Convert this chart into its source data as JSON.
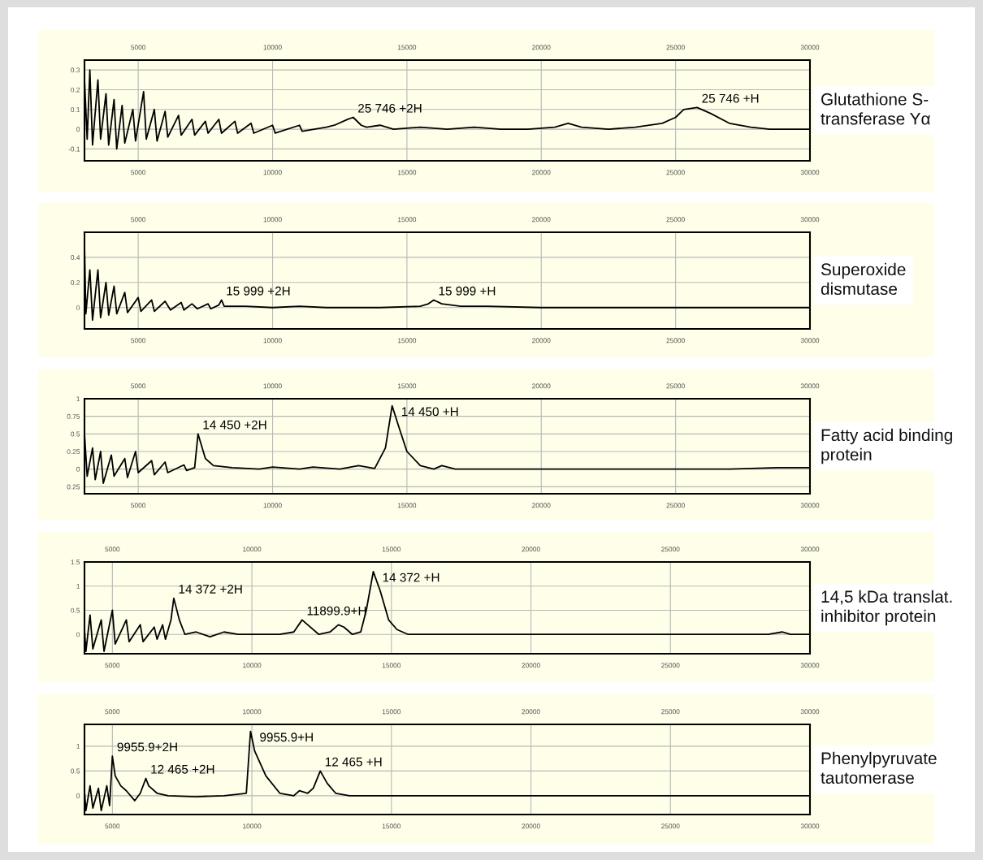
{
  "chart_data": [
    {
      "type": "line",
      "title": "Glutathione S-transferase Yα",
      "xlim": [
        3000,
        30000
      ],
      "xticks": [
        5000,
        10000,
        15000,
        20000,
        25000,
        30000
      ],
      "x2lim": [
        3000,
        30000
      ],
      "x2ticks": [
        5000,
        10000,
        15000,
        20000,
        25000,
        30000
      ],
      "ylim": [
        -0.16,
        0.35
      ],
      "yticks": [
        -0.1,
        0,
        0.1,
        0.2,
        0.3
      ],
      "grid": true,
      "series": [
        {
          "color": "#000000",
          "x": [
            3000,
            3100,
            3200,
            3300,
            3500,
            3600,
            3800,
            3900,
            4100,
            4200,
            4400,
            4500,
            4800,
            4900,
            5200,
            5300,
            5600,
            5700,
            6000,
            6100,
            6500,
            6600,
            7000,
            7100,
            7500,
            7600,
            8000,
            8100,
            8600,
            8700,
            9200,
            9300,
            10000,
            10100,
            11000,
            11100,
            12000,
            12300,
            12800,
            13000,
            13300,
            13500,
            14000,
            14500,
            15500,
            16500,
            17500,
            18500,
            19500,
            20500,
            21000,
            21500,
            22500,
            23500,
            24500,
            25000,
            25300,
            25800,
            26300,
            27000,
            27800,
            28500,
            29000,
            30000
          ],
          "values": [
            0.25,
            -0.05,
            0.3,
            -0.08,
            0.25,
            -0.05,
            0.18,
            -0.08,
            0.15,
            -0.1,
            0.12,
            -0.07,
            0.1,
            -0.06,
            0.19,
            -0.05,
            0.1,
            -0.06,
            0.09,
            -0.04,
            0.07,
            -0.03,
            0.05,
            -0.03,
            0.04,
            -0.02,
            0.05,
            -0.02,
            0.04,
            -0.02,
            0.03,
            -0.02,
            0.02,
            -0.02,
            0.02,
            -0.01,
            0.01,
            0.02,
            0.05,
            0.06,
            0.02,
            0.01,
            0.02,
            0.0,
            0.01,
            0.0,
            0.01,
            0.0,
            0.0,
            0.01,
            0.03,
            0.01,
            0.0,
            0.01,
            0.03,
            0.06,
            0.1,
            0.11,
            0.08,
            0.03,
            0.01,
            0.0,
            0.0,
            0.0
          ]
        }
      ],
      "annotations": [
        {
          "text": "25 746 +2H",
          "x": 13000,
          "y": 0.06
        },
        {
          "text": "25 746 +H",
          "x": 25800,
          "y": 0.11
        }
      ]
    },
    {
      "type": "line",
      "title": "Superoxide dismutase",
      "xlim": [
        3000,
        30000
      ],
      "xticks": [
        5000,
        10000,
        15000,
        20000,
        25000,
        30000
      ],
      "x2lim": [
        3000,
        30000
      ],
      "x2ticks": [
        5000,
        10000,
        15000,
        20000,
        25000,
        30000
      ],
      "ylim": [
        -0.17,
        0.6
      ],
      "yticks": [
        0,
        0.2,
        0.4
      ],
      "grid": true,
      "series": [
        {
          "color": "#000000",
          "x": [
            3000,
            3050,
            3200,
            3300,
            3500,
            3600,
            3800,
            3900,
            4100,
            4200,
            4500,
            4600,
            5000,
            5100,
            5500,
            5600,
            6000,
            6200,
            6600,
            6700,
            7000,
            7200,
            7600,
            7700,
            8000,
            8100,
            8200,
            9000,
            10000,
            11000,
            12000,
            13000,
            14000,
            15500,
            15800,
            16000,
            16300,
            17000,
            18000,
            20000,
            25000,
            30000
          ],
          "values": [
            0.5,
            -0.05,
            0.3,
            -0.1,
            0.3,
            -0.08,
            0.2,
            -0.06,
            0.17,
            -0.05,
            0.12,
            -0.04,
            0.08,
            -0.03,
            0.06,
            -0.03,
            0.05,
            -0.02,
            0.04,
            -0.02,
            0.03,
            -0.01,
            0.03,
            -0.01,
            0.02,
            0.06,
            0.01,
            0.01,
            0.0,
            0.01,
            0.0,
            0.0,
            0.0,
            0.01,
            0.03,
            0.06,
            0.03,
            0.01,
            0.01,
            0.0,
            0.0,
            0.0
          ]
        }
      ],
      "annotations": [
        {
          "text": "15 999 +2H",
          "x": 8100,
          "y": 0.06
        },
        {
          "text": "15 999 +H",
          "x": 16000,
          "y": 0.06
        }
      ]
    },
    {
      "type": "line",
      "title": "Fatty acid binding protein",
      "xlim": [
        3000,
        30000
      ],
      "xticks": [
        5000,
        10000,
        15000,
        20000,
        25000,
        30000
      ],
      "x2lim": [
        3000,
        30000
      ],
      "x2ticks": [
        5000,
        10000,
        15000,
        20000,
        25000,
        30000
      ],
      "ylim": [
        -0.35,
        1.0
      ],
      "yticks": [
        {
          "value": -0.25,
          "label": "0.25"
        },
        0,
        0.25,
        0.5,
        0.75,
        1
      ],
      "grid": true,
      "series": [
        {
          "color": "#000000",
          "x": [
            3000,
            3100,
            3300,
            3400,
            3600,
            3700,
            4000,
            4100,
            4500,
            4600,
            4900,
            5000,
            5500,
            5600,
            6000,
            6100,
            6700,
            6800,
            7100,
            7225,
            7500,
            7800,
            8500,
            9500,
            10000,
            11000,
            11500,
            12500,
            13200,
            13800,
            14200,
            14450,
            14700,
            15000,
            15500,
            16000,
            16300,
            16800,
            18000,
            22000,
            27000,
            28800,
            30000
          ],
          "values": [
            0.5,
            -0.1,
            0.3,
            -0.15,
            0.25,
            -0.2,
            0.2,
            -0.1,
            0.15,
            -0.12,
            0.25,
            -0.05,
            0.12,
            -0.08,
            0.1,
            -0.05,
            0.06,
            -0.02,
            0.02,
            0.5,
            0.15,
            0.05,
            0.02,
            0.0,
            0.03,
            0.0,
            0.03,
            0.0,
            0.05,
            0.01,
            0.3,
            0.9,
            0.6,
            0.25,
            0.05,
            0.0,
            0.05,
            0.0,
            0.0,
            0.0,
            0.0,
            0.02,
            0.02
          ]
        }
      ],
      "annotations": [
        {
          "text": "14 450 +2H",
          "x": 7225,
          "y": 0.5
        },
        {
          "text": "14 450 +H",
          "x": 14450,
          "y": 0.9
        }
      ]
    },
    {
      "type": "line",
      "title": "14,5 kDa translat. inhibitor protein",
      "xlim": [
        4000,
        30000
      ],
      "xticks": [
        5000,
        10000,
        15000,
        20000,
        25000,
        30000
      ],
      "x2lim": [
        4000,
        30000
      ],
      "x2ticks": [
        5000,
        10000,
        15000,
        20000,
        25000,
        30000
      ],
      "ylim": [
        -0.4,
        1.5
      ],
      "yticks": [
        0,
        0.5,
        1,
        1.5
      ],
      "grid": true,
      "series": [
        {
          "color": "#000000",
          "x": [
            4000,
            4050,
            4200,
            4300,
            4600,
            4700,
            5000,
            5100,
            5500,
            5600,
            6000,
            6100,
            6500,
            6600,
            6800,
            6900,
            7100,
            7200,
            7400,
            7600,
            8000,
            8500,
            9000,
            9500,
            10000,
            11000,
            11500,
            11800,
            12000,
            12400,
            12800,
            13100,
            13300,
            13600,
            13900,
            14100,
            14350,
            14600,
            14900,
            15200,
            15600,
            17000,
            20000,
            25000,
            28500,
            29000,
            29300,
            30000
          ],
          "values": [
            0.1,
            -0.35,
            0.4,
            -0.3,
            0.3,
            -0.35,
            0.5,
            -0.2,
            0.3,
            -0.15,
            0.2,
            -0.15,
            0.15,
            -0.1,
            0.2,
            -0.1,
            0.3,
            0.75,
            0.3,
            0.0,
            0.05,
            -0.05,
            0.05,
            0.0,
            0.0,
            0.0,
            0.05,
            0.3,
            0.2,
            0.0,
            0.05,
            0.2,
            0.15,
            0.0,
            0.05,
            0.5,
            1.3,
            0.9,
            0.3,
            0.1,
            0.0,
            0.0,
            0.0,
            0.0,
            0.0,
            0.05,
            0.0,
            0.0
          ]
        }
      ],
      "annotations": [
        {
          "text": "14 372 +2H",
          "x": 7200,
          "y": 0.75
        },
        {
          "text": "14 372 +H",
          "x": 14350,
          "y": 1.3
        },
        {
          "text": "11899.9+H",
          "x": 11800,
          "y": 0.3
        }
      ]
    },
    {
      "type": "line",
      "title": "Phenylpyruvate tautomerase",
      "xlim": [
        4000,
        30000
      ],
      "xticks": [
        5000,
        10000,
        15000,
        20000,
        25000,
        30000
      ],
      "x2lim": [
        4000,
        30000
      ],
      "x2ticks": [
        5000,
        10000,
        15000,
        20000,
        25000,
        30000
      ],
      "ylim": [
        -0.38,
        1.44
      ],
      "yticks": [
        0,
        0.5,
        1
      ],
      "grid": true,
      "series": [
        {
          "color": "#000000",
          "x": [
            4000,
            4050,
            4200,
            4300,
            4500,
            4600,
            4800,
            4900,
            5000,
            5100,
            5300,
            5500,
            5800,
            6000,
            6200,
            6300,
            6600,
            7000,
            8000,
            9000,
            9800,
            9950,
            10100,
            10500,
            11000,
            11500,
            11700,
            12000,
            12200,
            12450,
            12700,
            13000,
            13500,
            16000,
            20000,
            25000,
            30000
          ],
          "values": [
            0.1,
            -0.3,
            0.2,
            -0.25,
            0.15,
            -0.3,
            0.2,
            -0.2,
            0.8,
            0.4,
            0.2,
            0.1,
            -0.1,
            0.05,
            0.35,
            0.2,
            0.05,
            0.0,
            -0.02,
            0.0,
            0.05,
            1.3,
            0.9,
            0.4,
            0.05,
            0.0,
            0.1,
            0.05,
            0.15,
            0.5,
            0.25,
            0.05,
            0.0,
            0.0,
            0.0,
            0.0,
            0.0
          ]
        }
      ],
      "annotations": [
        {
          "text": "9955.9+2H",
          "x": 5000,
          "y": 0.8
        },
        {
          "text": "12 465 +2H",
          "x": 6200,
          "y": 0.35
        },
        {
          "text": "9955.9+H",
          "x": 9950,
          "y": 1.3
        },
        {
          "text": "12 465 +H",
          "x": 12450,
          "y": 0.5
        }
      ]
    }
  ]
}
